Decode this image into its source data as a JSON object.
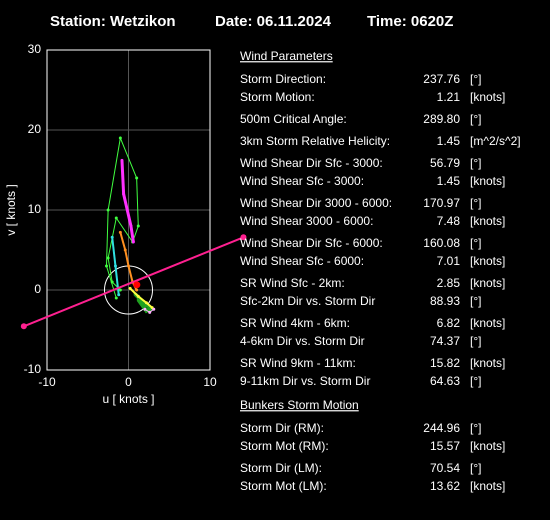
{
  "header": {
    "station": "Station: Wetzikon",
    "date": "Date: 06.11.2024",
    "time": "Time: 0620Z"
  },
  "chart_data": {
    "type": "hodograph",
    "x_label": "u  [ knots ]",
    "y_label": "v  [ knots ]",
    "xlim": [
      -10,
      10
    ],
    "ylim": [
      -10,
      30
    ],
    "xticks": [
      -10,
      0,
      10
    ],
    "yticks": [
      -10,
      0,
      10,
      20,
      30
    ],
    "grid": true,
    "series": [
      {
        "color": "#40ff40",
        "width": 1,
        "x": [
          -1.5,
          -2.7,
          -2.5,
          -1,
          1,
          1.2,
          0.5,
          -1.5,
          -2.5,
          -2,
          -1
        ],
        "y": [
          -1,
          3,
          10,
          19,
          14,
          8,
          6,
          9,
          4,
          1,
          0
        ]
      },
      {
        "color": "#ff30ff",
        "width": 3,
        "x": [
          -0.8,
          -0.6,
          0.3,
          0.6
        ],
        "y": [
          16.2,
          12,
          8,
          6
        ]
      },
      {
        "color": "#ff9020",
        "width": 2,
        "x": [
          -1,
          -0.4,
          0,
          0.5,
          1
        ],
        "y": [
          7.2,
          5,
          3,
          1,
          0
        ]
      },
      {
        "color": "#30e0e0",
        "width": 2,
        "x": [
          -2,
          -1.6,
          -1.2
        ],
        "y": [
          6.6,
          3,
          -0.6
        ]
      },
      {
        "color": "#20a020",
        "width": 4,
        "x": [
          0.8,
          1.8,
          2.8,
          2.2,
          1.2
        ],
        "y": [
          -0.5,
          -1.5,
          -2.3,
          -2.6,
          -1.2
        ]
      },
      {
        "color": "#ffff40",
        "width": 2,
        "x": [
          0.2,
          1.2,
          2.2,
          2.9
        ],
        "y": [
          0.2,
          -0.8,
          -1.6,
          -2.2
        ]
      },
      {
        "color": "#ffb0ff",
        "width": 1,
        "x": [
          2,
          2.6,
          3.1
        ],
        "y": [
          -2.4,
          -2.8,
          -2.4
        ]
      }
    ]
  },
  "parameters": {
    "title": "Wind Parameters",
    "groups": [
      [
        {
          "label": "Storm Direction:",
          "value": "237.76",
          "unit": "[°]",
          "color": "#ff2020"
        },
        {
          "label": "Storm Motion:",
          "value": "1.21",
          "unit": "[knots]",
          "color": "#ff2020"
        }
      ],
      [
        {
          "label": "500m Critical Angle:",
          "value": "289.80",
          "unit": "[°]",
          "color": "#e070ff"
        }
      ],
      [
        {
          "label": "3km Storm Relative Helicity:",
          "value": "1.45",
          "unit": "[m^2/s^2]",
          "color": "#30c030"
        }
      ],
      [
        {
          "label": "Wind Shear Dir Sfc - 3000:",
          "value": "56.79",
          "unit": "[°]",
          "color": "#30e0e0"
        },
        {
          "label": "Wind Shear Sfc - 3000:",
          "value": "1.45",
          "unit": "[knots]",
          "color": "#30e0e0"
        }
      ],
      [
        {
          "label": "Wind Shear Dir 3000 - 6000:",
          "value": "170.97",
          "unit": "[°]",
          "color": "#30e0e0"
        },
        {
          "label": "Wind Shear 3000 - 6000:",
          "value": "7.48",
          "unit": "[knots]",
          "color": "#30e0e0"
        }
      ],
      [
        {
          "label": "Wind Shear Dir Sfc - 6000:",
          "value": "160.08",
          "unit": "[°]",
          "color": "#30e0e0"
        },
        {
          "label": "Wind Shear Sfc - 6000:",
          "value": "7.01",
          "unit": "[knots]",
          "color": "#30e0e0"
        }
      ],
      [
        {
          "label": "SR Wind Sfc - 2km:",
          "value": "2.85",
          "unit": "[knots]",
          "color": "#ffd000"
        },
        {
          "label": "Sfc-2km Dir vs. Storm Dir",
          "value": "88.93",
          "unit": "[°]",
          "color": "#ffff40"
        }
      ],
      [
        {
          "label": "SR Wind 4km - 6km:",
          "value": "6.82",
          "unit": "[knots]",
          "color": "#ff9020"
        },
        {
          "label": "4-6km Dir vs. Storm Dir",
          "value": "74.37",
          "unit": "[°]",
          "color": "#ff9020"
        }
      ],
      [
        {
          "label": "SR Wind 9km - 11km:",
          "value": "15.82",
          "unit": "[knots]",
          "color": "#ff40ff"
        },
        {
          "label": "9-11km Dir vs. Storm Dir",
          "value": "64.63",
          "unit": "[°]",
          "color": "#ff40ff"
        }
      ]
    ]
  },
  "bunkers": {
    "title": "Bunkers Storm Motion",
    "groups": [
      [
        {
          "label": "Storm Dir (RM):",
          "value": "244.96",
          "unit": "[°]",
          "color": "#ff3050"
        },
        {
          "label": "Storm Mot (RM):",
          "value": "15.57",
          "unit": "[knots]",
          "color": "#ff3050"
        }
      ],
      [
        {
          "label": "Storm Dir (LM):",
          "value": "70.54",
          "unit": "[°]",
          "color": "#ff2090"
        },
        {
          "label": "Storm Mot (LM):",
          "value": "13.62",
          "unit": "[knots]",
          "color": "#ff2090"
        }
      ]
    ]
  }
}
